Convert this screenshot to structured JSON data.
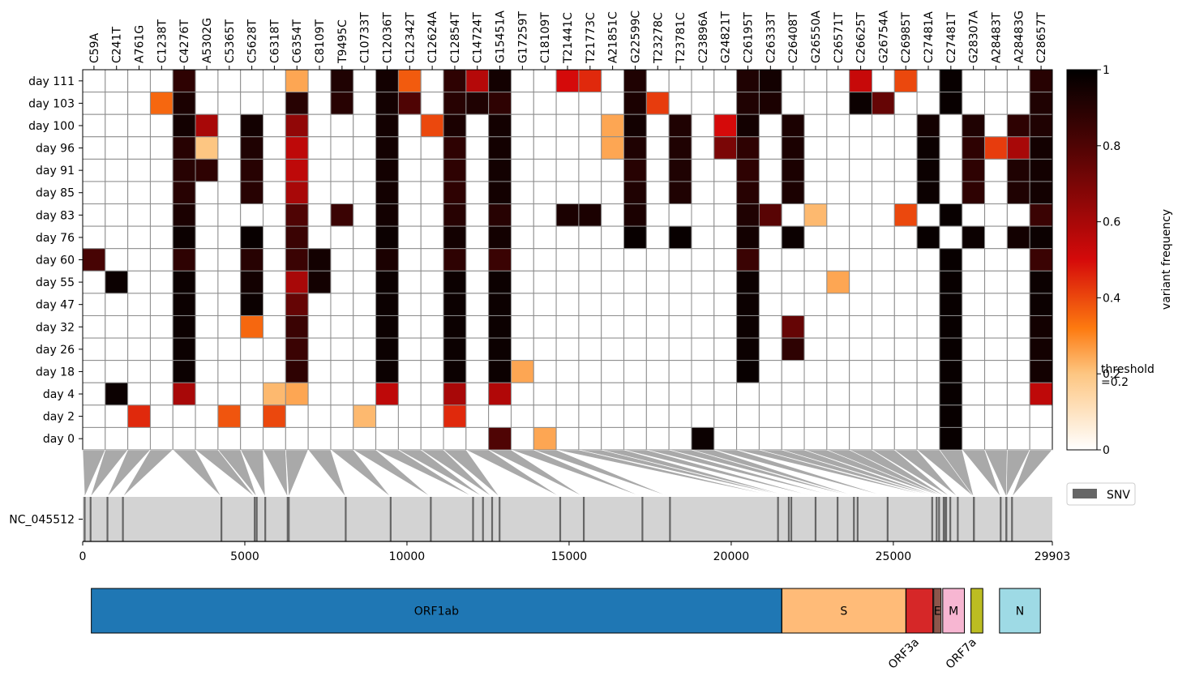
{
  "chart_data": {
    "type": "heatmap",
    "colorbar": {
      "label": "variant frequency",
      "ticks": [
        "0",
        "0.2",
        "0.4",
        "0.6",
        "0.8",
        "1"
      ],
      "threshold_label_line1": "threshold",
      "threshold_label_line2": "=0.2",
      "range": [
        0,
        1
      ]
    },
    "columns": [
      "C59A",
      "C241T",
      "A761G",
      "C1238T",
      "C4276T",
      "A5302G",
      "C5365T",
      "C5628T",
      "C6318T",
      "C6354T",
      "C8109T",
      "T9495C",
      "C10733T",
      "C12036T",
      "C12342T",
      "C12624A",
      "C12854T",
      "C14724T",
      "G15451A",
      "G17259T",
      "C18109T",
      "T21441C",
      "T21773C",
      "A21851C",
      "G22599C",
      "T23278C",
      "T23781C",
      "C23896A",
      "G24821T",
      "C26195T",
      "C26333T",
      "C26408T",
      "G26550A",
      "C26571T",
      "C26625T",
      "G26754A",
      "C26985T",
      "C27481A",
      "C27481T",
      "G28307A",
      "A28483T",
      "A28483G",
      "C28657T"
    ],
    "positions": [
      59,
      241,
      761,
      1238,
      4276,
      5302,
      5365,
      5628,
      6318,
      6354,
      8109,
      9495,
      10733,
      12036,
      12342,
      12624,
      12854,
      14724,
      15451,
      17259,
      18109,
      21441,
      21773,
      21851,
      22599,
      23278,
      23781,
      23896,
      24821,
      26195,
      26333,
      26408,
      26550,
      26571,
      26625,
      26754,
      26985,
      27481,
      27481,
      28307,
      28483,
      28483,
      28657
    ],
    "rows": [
      "day 111",
      "day 103",
      "day 100",
      "day 96",
      "day 91",
      "day 85",
      "day 83",
      "day 76",
      "day 60",
      "day 55",
      "day 47",
      "day 32",
      "day 26",
      "day 18",
      "day 4",
      "day 2",
      "day 0"
    ],
    "values": [
      [
        0,
        0,
        0,
        0,
        0.88,
        0,
        0,
        0,
        0,
        0.25,
        0,
        0.92,
        0,
        0.95,
        0.37,
        0,
        0.88,
        0.57,
        0.95,
        0,
        0,
        0.5,
        0.45,
        0,
        0.92,
        0,
        0,
        0,
        0,
        0.92,
        0.95,
        0,
        0,
        0,
        0.53,
        0,
        0.4,
        0,
        0.98,
        0,
        0,
        0,
        0.9
      ],
      [
        0,
        0,
        0,
        0.35,
        0.93,
        0,
        0,
        0,
        0,
        0.9,
        0,
        0.9,
        0,
        0.95,
        0.8,
        0,
        0.9,
        0.92,
        0.88,
        0,
        0,
        0,
        0,
        0,
        0.93,
        0.42,
        0,
        0,
        0,
        0.92,
        0.93,
        0,
        0,
        0,
        0.97,
        0.75,
        0,
        0,
        0.98,
        0,
        0,
        0,
        0.92
      ],
      [
        0,
        0,
        0,
        0,
        0.95,
        0.6,
        0,
        0.95,
        0,
        0.65,
        0,
        0,
        0,
        0.95,
        0,
        0.4,
        0.93,
        0,
        0.95,
        0,
        0,
        0,
        0,
        0.25,
        0.95,
        0,
        0.92,
        0,
        0.5,
        0.95,
        0,
        0.93,
        0,
        0,
        0,
        0,
        0,
        0.95,
        0,
        0.92,
        0,
        0.88,
        0.92
      ],
      [
        0,
        0,
        0,
        0,
        0.9,
        0.2,
        0,
        0.92,
        0,
        0.55,
        0,
        0,
        0,
        0.95,
        0,
        0,
        0.88,
        0,
        0.95,
        0,
        0,
        0,
        0,
        0.25,
        0.92,
        0,
        0.92,
        0,
        0.7,
        0.88,
        0,
        0.93,
        0,
        0,
        0,
        0,
        0,
        0.97,
        0,
        0.88,
        0.42,
        0.6,
        0.95
      ],
      [
        0,
        0,
        0,
        0,
        0.9,
        0.88,
        0,
        0.9,
        0,
        0.55,
        0,
        0,
        0,
        0.95,
        0,
        0,
        0.88,
        0,
        0.95,
        0,
        0,
        0,
        0,
        0,
        0.9,
        0,
        0.92,
        0,
        0,
        0.88,
        0,
        0.93,
        0,
        0,
        0,
        0,
        0,
        0.97,
        0,
        0.88,
        0,
        0.92,
        0.95
      ],
      [
        0,
        0,
        0,
        0,
        0.9,
        0,
        0,
        0.9,
        0,
        0.6,
        0,
        0,
        0,
        0.95,
        0,
        0,
        0.88,
        0,
        0.95,
        0,
        0,
        0,
        0,
        0,
        0.92,
        0,
        0.92,
        0,
        0,
        0.9,
        0,
        0.93,
        0,
        0,
        0,
        0,
        0,
        0.97,
        0,
        0.88,
        0,
        0.92,
        0.95
      ],
      [
        0,
        0,
        0,
        0,
        0.93,
        0,
        0,
        0,
        0,
        0.8,
        0,
        0.85,
        0,
        0.95,
        0,
        0,
        0.9,
        0,
        0.9,
        0,
        0,
        0.93,
        0.93,
        0,
        0.93,
        0,
        0,
        0,
        0,
        0.92,
        0.78,
        0,
        0.22,
        0,
        0,
        0,
        0.4,
        0,
        0.98,
        0,
        0,
        0,
        0.85
      ],
      [
        0,
        0,
        0,
        0,
        0.97,
        0,
        0,
        0.98,
        0,
        0.85,
        0,
        0,
        0,
        0.97,
        0,
        0,
        0.95,
        0,
        0.95,
        0,
        0,
        0,
        0,
        0,
        0.98,
        0,
        0.98,
        0,
        0,
        0.95,
        0,
        0.97,
        0,
        0,
        0,
        0,
        0,
        0.98,
        0,
        0.97,
        0,
        0.95,
        0.97
      ],
      [
        0.82,
        0,
        0,
        0,
        0.88,
        0,
        0,
        0.9,
        0,
        0.85,
        0.95,
        0,
        0,
        0.93,
        0,
        0,
        0.88,
        0,
        0.85,
        0,
        0,
        0,
        0,
        0,
        0,
        0,
        0,
        0,
        0,
        0.85,
        0,
        0,
        0,
        0,
        0,
        0,
        0,
        0,
        0.98,
        0,
        0,
        0,
        0.85
      ],
      [
        0,
        0.97,
        0,
        0,
        0.97,
        0,
        0,
        0.95,
        0,
        0.6,
        0.95,
        0,
        0,
        0.97,
        0,
        0,
        0.97,
        0,
        0.97,
        0,
        0,
        0,
        0,
        0,
        0,
        0,
        0,
        0,
        0,
        0.97,
        0,
        0,
        0,
        0.25,
        0,
        0,
        0,
        0,
        0.98,
        0,
        0,
        0,
        0.97
      ],
      [
        0,
        0,
        0,
        0,
        0.97,
        0,
        0,
        0.97,
        0,
        0.75,
        0,
        0,
        0,
        0.97,
        0,
        0,
        0.97,
        0,
        0.97,
        0,
        0,
        0,
        0,
        0,
        0,
        0,
        0,
        0,
        0,
        0.97,
        0,
        0,
        0,
        0,
        0,
        0,
        0,
        0,
        0.98,
        0,
        0,
        0,
        0.97
      ],
      [
        0,
        0,
        0,
        0,
        0.97,
        0,
        0,
        0.35,
        0,
        0.85,
        0,
        0,
        0,
        0.97,
        0,
        0,
        0.97,
        0,
        0.97,
        0,
        0,
        0,
        0,
        0,
        0,
        0,
        0,
        0,
        0,
        0.97,
        0,
        0.75,
        0,
        0,
        0,
        0,
        0,
        0,
        0.98,
        0,
        0,
        0,
        0.95
      ],
      [
        0,
        0,
        0,
        0,
        0.97,
        0,
        0,
        0,
        0,
        0.85,
        0,
        0,
        0,
        0.97,
        0,
        0,
        0.97,
        0,
        0.97,
        0,
        0,
        0,
        0,
        0,
        0,
        0,
        0,
        0,
        0,
        0.97,
        0,
        0.88,
        0,
        0,
        0,
        0,
        0,
        0,
        0.98,
        0,
        0,
        0,
        0.95
      ],
      [
        0,
        0,
        0,
        0,
        0.97,
        0,
        0,
        0,
        0,
        0.88,
        0,
        0,
        0,
        0.97,
        0,
        0,
        0.97,
        0,
        0.97,
        0.25,
        0,
        0,
        0,
        0,
        0,
        0,
        0,
        0,
        0,
        0.98,
        0,
        0,
        0,
        0,
        0,
        0,
        0,
        0,
        0.98,
        0,
        0,
        0,
        0.95
      ],
      [
        0,
        0.97,
        0,
        0,
        0.6,
        0,
        0,
        0,
        0.22,
        0.25,
        0,
        0,
        0,
        0.55,
        0,
        0,
        0.6,
        0,
        0.58,
        0,
        0,
        0,
        0,
        0,
        0,
        0,
        0,
        0,
        0,
        0,
        0,
        0,
        0,
        0,
        0,
        0,
        0,
        0,
        0.98,
        0,
        0,
        0,
        0.55
      ],
      [
        0,
        0,
        0.45,
        0,
        0,
        0,
        0.38,
        0,
        0.4,
        0,
        0,
        0,
        0.22,
        0,
        0,
        0,
        0.45,
        0,
        0,
        0,
        0,
        0,
        0,
        0,
        0,
        0,
        0,
        0,
        0,
        0,
        0,
        0,
        0,
        0,
        0,
        0,
        0,
        0,
        0.98,
        0,
        0,
        0,
        0
      ],
      [
        0,
        0,
        0,
        0,
        0,
        0,
        0,
        0,
        0,
        0,
        0,
        0,
        0,
        0,
        0,
        0,
        0,
        0,
        0.8,
        0,
        0.25,
        0,
        0,
        0,
        0,
        0,
        0,
        0.97,
        0,
        0,
        0,
        0,
        0,
        0,
        0,
        0,
        0,
        0,
        0.98,
        0,
        0,
        0,
        0
      ]
    ],
    "genome": {
      "label": "NC_045512",
      "length": 29903,
      "ticks": [
        0,
        5000,
        10000,
        15000,
        20000,
        25000,
        29903
      ],
      "tick_labels": [
        "0",
        "5000",
        "10000",
        "15000",
        "20000",
        "25000",
        "29903"
      ],
      "legend_label": "SNV"
    },
    "genes": [
      {
        "name": "ORF1ab",
        "start": 266,
        "end": 21555,
        "color": "#1f77b4",
        "label_pos": "inside"
      },
      {
        "name": "S",
        "start": 21563,
        "end": 25384,
        "color": "#ffbb78",
        "label_pos": "inside"
      },
      {
        "name": "ORF3a",
        "start": 25393,
        "end": 26220,
        "color": "#d62728",
        "label_pos": "below"
      },
      {
        "name": "E",
        "start": 26245,
        "end": 26472,
        "color": "#8c564b",
        "label_pos": "inside"
      },
      {
        "name": "M",
        "start": 26523,
        "end": 27191,
        "color": "#f7b6d2",
        "label_pos": "inside"
      },
      {
        "name": "ORF7a",
        "start": 27394,
        "end": 27759,
        "color": "#bcbd22",
        "label_pos": "below"
      },
      {
        "name": "N",
        "start": 28274,
        "end": 29533,
        "color": "#9edae5",
        "label_pos": "inside"
      }
    ]
  }
}
